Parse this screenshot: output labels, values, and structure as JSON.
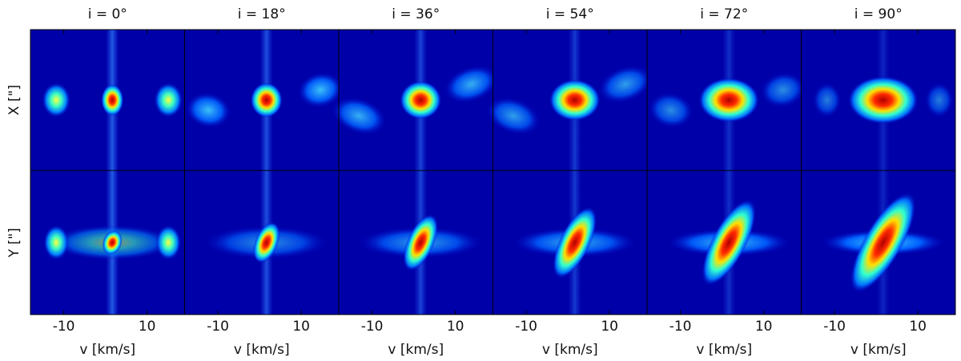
{
  "chart_data": {
    "type": "heatmap-grid",
    "row_labels": [
      "X [\"]",
      "Y [\"]"
    ],
    "panels": [
      {
        "title": "i = 0°",
        "xlabel": "v [km/s]",
        "xlim": [
          -18,
          19
        ],
        "xticks": [
          -10,
          10
        ]
      },
      {
        "title": "i = 18°",
        "xlabel": "v [km/s]",
        "xlim": [
          -18,
          19
        ],
        "xticks": [
          -10,
          10
        ]
      },
      {
        "title": "i = 36°",
        "xlabel": "v [km/s]",
        "xlim": [
          -18,
          19
        ],
        "xticks": [
          -10,
          10
        ]
      },
      {
        "title": "i = 54°",
        "xlabel": "v [km/s]",
        "xlim": [
          -18,
          19
        ],
        "xticks": [
          -10,
          10
        ]
      },
      {
        "title": "i = 72°",
        "xlabel": "v [km/s]",
        "xlim": [
          -18,
          19
        ],
        "xticks": [
          -10,
          10
        ]
      },
      {
        "title": "i = 90°",
        "xlabel": "v [km/s]",
        "xlim": [
          -18,
          19
        ],
        "xticks": [
          -10,
          10
        ]
      }
    ]
  }
}
